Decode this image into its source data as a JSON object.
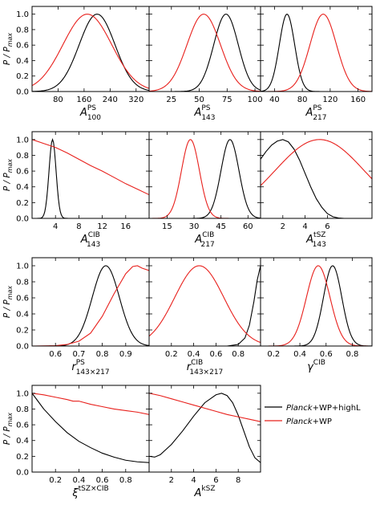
{
  "figure": {
    "ylabel": "P / P",
    "ylabel_sub": "max"
  },
  "legend": {
    "entries": [
      {
        "name": "Planck+WP+highL",
        "italic": "Planck",
        "rest": "+WP+highL",
        "color": "#000000"
      },
      {
        "name": "Planck+WP",
        "italic": "Planck",
        "rest": "+WP",
        "color": "#e8201c"
      }
    ]
  },
  "chart_data": [
    {
      "type": "line",
      "xlabel": "A",
      "xsup": "PS",
      "xsub": "100",
      "xlim": [
        0,
        360
      ],
      "ylim": [
        0,
        1.1
      ],
      "xticks": [
        80,
        160,
        240,
        320
      ],
      "yticks": [
        0,
        0.2,
        0.4,
        0.6,
        0.8,
        1.0
      ],
      "series": [
        {
          "type": "gauss",
          "mu": 200,
          "sigma": 55,
          "color": "#000000"
        },
        {
          "type": "gauss",
          "mu": 170,
          "sigma": 75,
          "color": "#e8201c"
        }
      ]
    },
    {
      "type": "line",
      "xlabel": "A",
      "xsup": "PS",
      "xsub": "143",
      "xlim": [
        5,
        105
      ],
      "ylim": [
        0,
        1.1
      ],
      "xticks": [
        25,
        50,
        75,
        100
      ],
      "yticks": [],
      "series": [
        {
          "type": "gauss",
          "mu": 74,
          "sigma": 11,
          "color": "#000000"
        },
        {
          "type": "gauss",
          "mu": 54,
          "sigma": 15,
          "color": "#e8201c"
        }
      ]
    },
    {
      "type": "line",
      "xlabel": "A",
      "xsup": "PS",
      "xsub": "217",
      "xlim": [
        20,
        180
      ],
      "ylim": [
        0,
        1.1
      ],
      "xticks": [
        40,
        80,
        120,
        160
      ],
      "yticks": [],
      "series": [
        {
          "type": "gauss",
          "mu": 58,
          "sigma": 11,
          "color": "#000000"
        },
        {
          "type": "gauss",
          "mu": 110,
          "sigma": 19,
          "color": "#e8201c"
        }
      ]
    },
    {
      "type": "line",
      "xlabel": "A",
      "xsup": "CIB",
      "xsub": "143",
      "xlim": [
        0,
        20
      ],
      "ylim": [
        0,
        1.1
      ],
      "xticks": [
        4,
        8,
        12,
        16
      ],
      "yticks": [
        0,
        0.2,
        0.4,
        0.6,
        0.8,
        1.0
      ],
      "series": [
        {
          "type": "gauss",
          "mu": 3.5,
          "sigma": 0.6,
          "color": "#000000"
        },
        {
          "type": "pts",
          "color": "#e8201c",
          "pts": [
            [
              0,
              1.0
            ],
            [
              2,
              0.95
            ],
            [
              4,
              0.9
            ],
            [
              6,
              0.83
            ],
            [
              8,
              0.75
            ],
            [
              10,
              0.67
            ],
            [
              12,
              0.6
            ],
            [
              14,
              0.52
            ],
            [
              16,
              0.44
            ],
            [
              18,
              0.37
            ],
            [
              20,
              0.3
            ]
          ]
        }
      ]
    },
    {
      "type": "line",
      "xlabel": "A",
      "xsup": "CIB",
      "xsub": "217",
      "xlim": [
        5,
        67
      ],
      "ylim": [
        0,
        1.1
      ],
      "xticks": [
        15,
        30,
        45,
        60
      ],
      "yticks": [],
      "series": [
        {
          "type": "gauss",
          "mu": 50,
          "sigma": 5,
          "color": "#000000"
        },
        {
          "type": "gauss",
          "mu": 28,
          "sigma": 5,
          "color": "#e8201c"
        }
      ]
    },
    {
      "type": "line",
      "xlabel": "A",
      "xsup": "tSZ",
      "xsub": "143",
      "xlim": [
        0,
        10
      ],
      "ylim": [
        0,
        1.1
      ],
      "xticks": [
        2,
        4,
        6
      ],
      "yticks": [],
      "series": [
        {
          "type": "pts",
          "color": "#000000",
          "pts": [
            [
              0,
              0.75
            ],
            [
              0.5,
              0.85
            ],
            [
              1,
              0.93
            ],
            [
              1.5,
              0.98
            ],
            [
              2,
              1.0
            ],
            [
              2.5,
              0.97
            ],
            [
              3,
              0.88
            ],
            [
              3.5,
              0.74
            ],
            [
              4,
              0.57
            ],
            [
              4.5,
              0.4
            ],
            [
              5,
              0.25
            ],
            [
              5.5,
              0.14
            ],
            [
              6,
              0.06
            ],
            [
              6.5,
              0.02
            ],
            [
              7,
              0.005
            ],
            [
              7.5,
              0
            ],
            [
              10,
              0
            ]
          ]
        },
        {
          "type": "gauss",
          "mu": 5.3,
          "sigma": 4.0,
          "color": "#e8201c"
        }
      ]
    },
    {
      "type": "line",
      "xlabel": "r",
      "xsup": "PS",
      "xsub": "143×217",
      "xlim": [
        0.5,
        1.0
      ],
      "ylim": [
        0,
        1.1
      ],
      "xticks": [
        0.6,
        0.7,
        0.8,
        0.9
      ],
      "yticks": [
        0,
        0.2,
        0.4,
        0.6,
        0.8,
        1.0
      ],
      "series": [
        {
          "type": "gauss",
          "mu": 0.815,
          "sigma": 0.058,
          "color": "#000000"
        },
        {
          "type": "pts",
          "color": "#e8201c",
          "pts": [
            [
              0.5,
              0
            ],
            [
              0.6,
              0.005
            ],
            [
              0.65,
              0.02
            ],
            [
              0.7,
              0.06
            ],
            [
              0.75,
              0.16
            ],
            [
              0.8,
              0.37
            ],
            [
              0.85,
              0.65
            ],
            [
              0.9,
              0.9
            ],
            [
              0.93,
              0.99
            ],
            [
              0.95,
              1.0
            ],
            [
              0.97,
              0.97
            ],
            [
              1.0,
              0.94
            ]
          ]
        }
      ]
    },
    {
      "type": "line",
      "xlabel": "r",
      "xsup": "CIB",
      "xsub": "143×217",
      "xlim": [
        0.0,
        1.0
      ],
      "ylim": [
        0,
        1.1
      ],
      "xticks": [
        0.2,
        0.4,
        0.6,
        0.8
      ],
      "yticks": [],
      "series": [
        {
          "type": "pts",
          "color": "#000000",
          "pts": [
            [
              0.7,
              0
            ],
            [
              0.8,
              0.02
            ],
            [
              0.86,
              0.1
            ],
            [
              0.9,
              0.26
            ],
            [
              0.94,
              0.55
            ],
            [
              0.97,
              0.82
            ],
            [
              1.0,
              1.0
            ]
          ]
        },
        {
          "type": "gauss",
          "mu": 0.45,
          "sigma": 0.22,
          "color": "#e8201c"
        }
      ]
    },
    {
      "type": "line",
      "xlabel": "γ",
      "xsup": "CIB",
      "xsub": "",
      "xlim": [
        0.1,
        0.95
      ],
      "ylim": [
        0,
        1.1
      ],
      "xticks": [
        0.2,
        0.4,
        0.6,
        0.8
      ],
      "yticks": [],
      "series": [
        {
          "type": "gauss",
          "mu": 0.65,
          "sigma": 0.07,
          "color": "#000000"
        },
        {
          "type": "gauss",
          "mu": 0.54,
          "sigma": 0.09,
          "color": "#e8201c"
        }
      ]
    },
    {
      "type": "line",
      "xlabel": "ξ",
      "xsup": "tSZ×CIB",
      "xsub": "",
      "xlim": [
        0.0,
        1.0
      ],
      "ylim": [
        0,
        1.1
      ],
      "xticks": [
        0.2,
        0.4,
        0.6,
        0.8
      ],
      "yticks": [
        0,
        0.2,
        0.4,
        0.6,
        0.8,
        1.0
      ],
      "series": [
        {
          "type": "pts",
          "color": "#000000",
          "pts": [
            [
              0,
              1.0
            ],
            [
              0.05,
              0.9
            ],
            [
              0.1,
              0.8
            ],
            [
              0.2,
              0.64
            ],
            [
              0.3,
              0.5
            ],
            [
              0.4,
              0.39
            ],
            [
              0.5,
              0.31
            ],
            [
              0.6,
              0.24
            ],
            [
              0.7,
              0.19
            ],
            [
              0.8,
              0.15
            ],
            [
              0.9,
              0.13
            ],
            [
              1.0,
              0.12
            ]
          ]
        },
        {
          "type": "pts",
          "color": "#e8201c",
          "pts": [
            [
              0,
              1.0
            ],
            [
              0.1,
              0.98
            ],
            [
              0.2,
              0.95
            ],
            [
              0.3,
              0.92
            ],
            [
              0.35,
              0.9
            ],
            [
              0.4,
              0.9
            ],
            [
              0.5,
              0.86
            ],
            [
              0.6,
              0.83
            ],
            [
              0.7,
              0.8
            ],
            [
              0.8,
              0.78
            ],
            [
              0.9,
              0.76
            ],
            [
              1.0,
              0.73
            ]
          ]
        }
      ]
    },
    {
      "type": "line",
      "xlabel": "A",
      "xsup": "kSZ",
      "xsub": "",
      "xlim": [
        0,
        10
      ],
      "ylim": [
        0,
        1.1
      ],
      "xticks": [
        2,
        4,
        6,
        8
      ],
      "yticks": [],
      "series": [
        {
          "type": "pts",
          "color": "#000000",
          "pts": [
            [
              0,
              0.2
            ],
            [
              0.5,
              0.19
            ],
            [
              1,
              0.22
            ],
            [
              2,
              0.35
            ],
            [
              3,
              0.52
            ],
            [
              4,
              0.71
            ],
            [
              5,
              0.88
            ],
            [
              6,
              0.98
            ],
            [
              6.5,
              1.0
            ],
            [
              7,
              0.97
            ],
            [
              7.5,
              0.88
            ],
            [
              8,
              0.72
            ],
            [
              8.5,
              0.52
            ],
            [
              9,
              0.32
            ],
            [
              9.5,
              0.18
            ],
            [
              10,
              0.12
            ]
          ]
        },
        {
          "type": "pts",
          "color": "#e8201c",
          "pts": [
            [
              0,
              1.0
            ],
            [
              1,
              0.97
            ],
            [
              2,
              0.93
            ],
            [
              3,
              0.89
            ],
            [
              4,
              0.85
            ],
            [
              5,
              0.81
            ],
            [
              6,
              0.77
            ],
            [
              7,
              0.73
            ],
            [
              8,
              0.7
            ],
            [
              9,
              0.67
            ],
            [
              10,
              0.64
            ]
          ]
        }
      ]
    }
  ]
}
